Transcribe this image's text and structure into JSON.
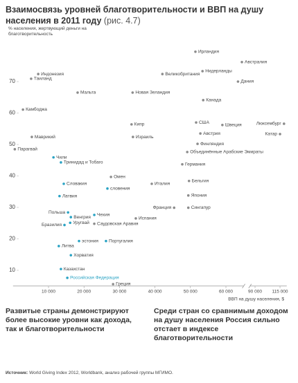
{
  "chart_data": {
    "type": "scatter",
    "title": "Взаимосвязь уровней благотворительности и ВВП на душу населения в 2011 году",
    "title_ref": "(рис. 4.7)",
    "y_label": "% населения, жертвующий деньги на благотворительность",
    "x_label": "ВВП на душу населения, $",
    "xlim": [
      0,
      119000
    ],
    "x_break": [
      65000,
      85000
    ],
    "ylim": [
      5,
      83
    ],
    "xticks": [
      {
        "value": 10000,
        "label": "10 000"
      },
      {
        "value": 20000,
        "label": "20 000"
      },
      {
        "value": 30000,
        "label": "30 000"
      },
      {
        "value": 40000,
        "label": "40 000"
      },
      {
        "value": 50000,
        "label": "50 000"
      },
      {
        "value": 60000,
        "label": "60 000"
      },
      {
        "value": 90000,
        "label": "90 000"
      },
      {
        "value": 115000,
        "label": "115 000"
      }
    ],
    "yticks": [
      10,
      20,
      30,
      40,
      50,
      60,
      70
    ],
    "grid": false,
    "series": [
      {
        "color": "#8c8c8c",
        "labels": [
          "Ирландия",
          "Австралия",
          "Нидерланды",
          "Индонезия",
          "Великобритания",
          "Таиланд",
          "Дания",
          "Мальта",
          "Новая Зеландия",
          "Канада",
          "Камбоджа",
          "Кипр",
          "США",
          "Швеция",
          "Люксембург",
          "Австрия",
          "Катар",
          "Маврикий",
          "Израиль",
          "Финляндия",
          "Парагвай",
          "Объединённые Арабские Эмираты",
          "Германия",
          "Омен",
          "Бельгия",
          "Италия",
          "Япония",
          "Франция",
          "Сингапур",
          "Испания",
          "Саудовская Аравия",
          "Греция"
        ],
        "x": [
          51400,
          64500,
          53400,
          7100,
          42100,
          5100,
          63400,
          18200,
          33700,
          53600,
          2800,
          33400,
          51600,
          59000,
          119000,
          52800,
          115000,
          5300,
          33800,
          52000,
          500,
          49100,
          47700,
          27600,
          49600,
          39100,
          49400,
          45400,
          49400,
          34600,
          22900,
          28200
        ],
        "values": [
          79.5,
          76.2,
          73.3,
          72.4,
          72.4,
          70.9,
          70.0,
          66.5,
          66.5,
          64.1,
          61.1,
          56.4,
          57.0,
          56.2,
          56.6,
          53.5,
          53.3,
          52.4,
          52.4,
          50.2,
          48.5,
          47.6,
          43.7,
          39.7,
          38.4,
          37.5,
          33.8,
          29.9,
          29.9,
          26.5,
          24.8,
          5.6
        ]
      },
      {
        "color": "#2aa3c4",
        "labels": [
          "Чили",
          "Тринидад и Тобаго",
          "Словакия",
          "словения",
          "Латвия",
          "Польша",
          "Чехия",
          "Венгрия",
          "Уругвай",
          "Бразилия",
          "эстония",
          "Португалия",
          "Литва",
          "Хорватия",
          "Казахстан",
          "Российская Федерация"
        ],
        "x": [
          11400,
          13500,
          14300,
          26600,
          13100,
          15500,
          22900,
          16300,
          16100,
          14500,
          18600,
          26200,
          12900,
          16300,
          13500,
          15300
        ],
        "values": [
          45.9,
          44.3,
          37.5,
          36.0,
          33.6,
          28.4,
          27.6,
          26.9,
          25.1,
          24.4,
          19.3,
          19.3,
          17.7,
          14.8,
          10.4,
          7.6
        ]
      }
    ]
  },
  "notes": [
    "Развитые страны демонстрируют более высокие уровни как дохода, так и благотворительности",
    "Среди стран со сравнимым доходом на душу населения Россия сильно отстает в индексе благотворительности"
  ],
  "source_label": "Источник:",
  "source": "World Giving Index 2012, Worldbank, анализ рабочей группы МГИМО."
}
